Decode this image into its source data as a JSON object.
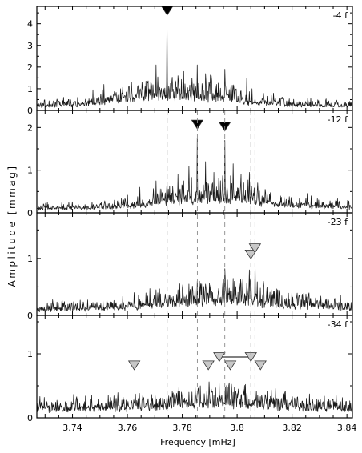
{
  "figure": {
    "ylabel": "Amplitude [mmag]",
    "xlabel": "Frequency [mHz]"
  },
  "chart_data": {
    "type": "line",
    "xlim": [
      3.727,
      3.842
    ],
    "x_ticks": [
      "3.74",
      "3.76",
      "3.78",
      "3.8",
      "3.82",
      "3.84"
    ],
    "x_tick_values": [
      3.74,
      3.76,
      3.78,
      3.8,
      3.82,
      3.84
    ],
    "x_minor_step": 0.005,
    "reference_lines": [
      3.7745,
      3.7855,
      3.7955,
      3.805,
      3.8065
    ],
    "colors": {
      "line": "#1a1a1a",
      "filled_marker": "#000000",
      "open_marker": "#c8c8c8",
      "guide": "#8a8a8a"
    },
    "panels": [
      {
        "label": "-4 f",
        "ylim": [
          0,
          4.8
        ],
        "y_ticks": [
          "0",
          "1",
          "2",
          "3",
          "4"
        ],
        "y_tick_values": [
          0,
          1,
          2,
          3,
          4
        ],
        "noise": 0.28,
        "envelope": [
          [
            3.727,
            0.3
          ],
          [
            3.745,
            0.45
          ],
          [
            3.755,
            0.75
          ],
          [
            3.765,
            1.0
          ],
          [
            3.775,
            1.1
          ],
          [
            3.785,
            1.0
          ],
          [
            3.795,
            0.85
          ],
          [
            3.805,
            0.6
          ],
          [
            3.82,
            0.38
          ],
          [
            3.842,
            0.3
          ]
        ],
        "peaks": [
          [
            3.7475,
            0.95
          ],
          [
            3.7515,
            1.2
          ],
          [
            3.7575,
            1.0
          ],
          [
            3.7615,
            1.3
          ],
          [
            3.7645,
            0.9
          ],
          [
            3.7665,
            1.1
          ],
          [
            3.7705,
            2.1
          ],
          [
            3.7745,
            4.3
          ],
          [
            3.7785,
            1.6
          ],
          [
            3.7805,
            1.8
          ],
          [
            3.7835,
            1.5
          ],
          [
            3.7855,
            2.1
          ],
          [
            3.7885,
            1.7
          ],
          [
            3.7905,
            1.6
          ],
          [
            3.7925,
            1.2
          ],
          [
            3.7955,
            1.9
          ],
          [
            3.7985,
            1.0
          ],
          [
            3.8015,
            0.9
          ],
          [
            3.8035,
            1.5
          ],
          [
            3.8055,
            1.0
          ],
          [
            3.8095,
            0.8
          ],
          [
            3.8125,
            0.7
          ]
        ],
        "markers": [
          {
            "x": 3.7745,
            "y": 4.6,
            "style": "filled"
          }
        ]
      },
      {
        "label": "-12 f",
        "ylim": [
          0,
          2.4
        ],
        "y_ticks": [
          "0",
          "1",
          "2"
        ],
        "y_tick_values": [
          0,
          1,
          2
        ],
        "noise": 0.14,
        "envelope": [
          [
            3.727,
            0.15
          ],
          [
            3.755,
            0.2
          ],
          [
            3.765,
            0.3
          ],
          [
            3.775,
            0.45
          ],
          [
            3.785,
            0.55
          ],
          [
            3.795,
            0.55
          ],
          [
            3.805,
            0.45
          ],
          [
            3.815,
            0.3
          ],
          [
            3.842,
            0.2
          ]
        ],
        "peaks": [
          [
            3.7645,
            0.6
          ],
          [
            3.7705,
            0.75
          ],
          [
            3.7745,
            0.7
          ],
          [
            3.7785,
            0.9
          ],
          [
            3.7805,
            0.75
          ],
          [
            3.7825,
            1.1
          ],
          [
            3.7855,
            1.75
          ],
          [
            3.7885,
            1.2
          ],
          [
            3.7915,
            0.95
          ],
          [
            3.7955,
            1.7
          ],
          [
            3.7985,
            1.15
          ],
          [
            3.8015,
            0.9
          ],
          [
            3.8045,
            0.95
          ],
          [
            3.8075,
            0.7
          ]
        ],
        "markers": [
          {
            "x": 3.7855,
            "y": 2.07,
            "style": "filled"
          },
          {
            "x": 3.7955,
            "y": 2.02,
            "style": "filled"
          }
        ]
      },
      {
        "label": "-23 f",
        "ylim": [
          0,
          1.8
        ],
        "y_ticks": [
          "0",
          "1"
        ],
        "y_tick_values": [
          0,
          1
        ],
        "noise": 0.12,
        "envelope": [
          [
            3.727,
            0.15
          ],
          [
            3.755,
            0.2
          ],
          [
            3.77,
            0.28
          ],
          [
            3.785,
            0.4
          ],
          [
            3.795,
            0.45
          ],
          [
            3.805,
            0.42
          ],
          [
            3.815,
            0.3
          ],
          [
            3.842,
            0.2
          ]
        ],
        "peaks": [
          [
            3.7625,
            0.4
          ],
          [
            3.7705,
            0.45
          ],
          [
            3.7785,
            0.45
          ],
          [
            3.7825,
            0.55
          ],
          [
            3.7855,
            0.6
          ],
          [
            3.7885,
            0.55
          ],
          [
            3.7955,
            0.82
          ],
          [
            3.7985,
            0.65
          ],
          [
            3.8015,
            0.55
          ],
          [
            3.8045,
            0.8
          ],
          [
            3.8065,
            0.95
          ],
          [
            3.8095,
            0.6
          ],
          [
            3.8125,
            0.45
          ]
        ],
        "markers": [
          {
            "x": 3.805,
            "y": 1.07,
            "style": "open"
          },
          {
            "x": 3.8065,
            "y": 1.18,
            "style": "open"
          }
        ]
      },
      {
        "label": "-34 f",
        "ylim": [
          0,
          1.6
        ],
        "y_ticks": [
          "0",
          "1"
        ],
        "y_tick_values": [
          0,
          1
        ],
        "noise": 0.13,
        "envelope": [
          [
            3.727,
            0.22
          ],
          [
            3.76,
            0.24
          ],
          [
            3.775,
            0.3
          ],
          [
            3.79,
            0.36
          ],
          [
            3.8,
            0.36
          ],
          [
            3.81,
            0.3
          ],
          [
            3.825,
            0.24
          ],
          [
            3.842,
            0.22
          ]
        ],
        "peaks": [
          [
            3.7585,
            0.32
          ],
          [
            3.7655,
            0.3
          ],
          [
            3.7745,
            0.35
          ],
          [
            3.7785,
            0.42
          ],
          [
            3.7825,
            0.4
          ],
          [
            3.7865,
            0.5
          ],
          [
            3.7905,
            0.45
          ],
          [
            3.7935,
            0.55
          ],
          [
            3.7965,
            0.48
          ],
          [
            3.8005,
            0.45
          ],
          [
            3.8035,
            0.38
          ],
          [
            3.8065,
            0.35
          ]
        ],
        "markers": [
          {
            "x": 3.7625,
            "y": 0.82,
            "style": "open"
          },
          {
            "x": 3.7895,
            "y": 0.82,
            "style": "open"
          },
          {
            "x": 3.7935,
            "y": 0.95,
            "style": "open"
          },
          {
            "x": 3.7975,
            "y": 0.82,
            "style": "open"
          },
          {
            "x": 3.805,
            "y": 0.95,
            "style": "open"
          },
          {
            "x": 3.8085,
            "y": 0.82,
            "style": "open"
          }
        ],
        "connector": {
          "x1": 3.7935,
          "x2": 3.805,
          "y": 0.95
        }
      }
    ]
  }
}
